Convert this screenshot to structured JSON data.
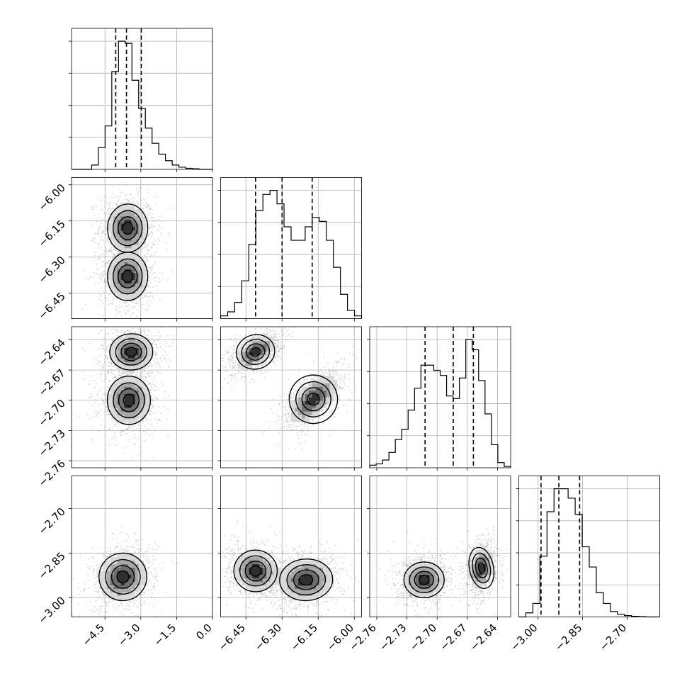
{
  "chart_data": {
    "type": "corner",
    "variables": [
      {
        "ticks": [
          -4.5,
          -3.0,
          -1.5,
          0.0
        ],
        "tick_labels": [
          "−4.5",
          "−3.0",
          "−1.5",
          "0.0"
        ],
        "range": [
          -5.9,
          0.0
        ]
      },
      {
        "ticks": [
          -6.45,
          -6.3,
          -6.15,
          -6.0
        ],
        "tick_labels": [
          "−6.45",
          "−6.30",
          "−6.15",
          "−6.00"
        ],
        "range": [
          -6.555,
          -5.97
        ]
      },
      {
        "ticks": [
          -2.76,
          -2.73,
          -2.7,
          -2.67,
          -2.64
        ],
        "tick_labels": [
          "−2.76",
          "−2.73",
          "−2.70",
          "−2.67",
          "−2.64"
        ],
        "range": [
          -2.767,
          -2.627
        ]
      },
      {
        "ticks": [
          -3.0,
          -2.85,
          -2.7
        ],
        "tick_labels": [
          "−3.00",
          "−2.85",
          "−2.70"
        ],
        "range": [
          -3.065,
          -2.59
        ]
      }
    ],
    "quantiles": [
      [
        -4.05,
        -3.6,
        -2.98
      ],
      [
        -6.41,
        -6.3,
        -6.175
      ],
      [
        -2.712,
        -2.684,
        -2.664
      ],
      [
        -2.99,
        -2.93,
        -2.86
      ]
    ],
    "histograms": [
      {
        "edges": [
          -5.9,
          0.0
        ],
        "counts": [
          0,
          0,
          0,
          2,
          10,
          20,
          45,
          59,
          58,
          41,
          28,
          19,
          12,
          7,
          4,
          2,
          1,
          0.5,
          0.3,
          0,
          0
        ]
      },
      {
        "edges": [
          -6.555,
          -5.97
        ],
        "counts": [
          2,
          5,
          12,
          28,
          55,
          80,
          92,
          95,
          85,
          68,
          58,
          58,
          68,
          75,
          72,
          58,
          38,
          18,
          6,
          2
        ]
      },
      {
        "edges": [
          -2.767,
          -2.627
        ],
        "counts": [
          2,
          3,
          6,
          12,
          22,
          30,
          45,
          62,
          80,
          80,
          76,
          72,
          56,
          54,
          70,
          100,
          92,
          68,
          42,
          18,
          4,
          1
        ]
      },
      {
        "edges": [
          -3.065,
          -2.59
        ],
        "counts": [
          0,
          3,
          10,
          45,
          78,
          95,
          95,
          88,
          76,
          52,
          37,
          18,
          10,
          4,
          2,
          1,
          0.5,
          0.2,
          0,
          0
        ]
      }
    ],
    "pairs": [
      {
        "x": 0,
        "y": 1,
        "modes": [
          {
            "mx": -3.55,
            "my": -6.18,
            "sx": 0.42,
            "sy": 0.05,
            "r": -0.05,
            "w": 1
          },
          {
            "mx": -3.55,
            "my": -6.38,
            "sx": 0.42,
            "sy": 0.05,
            "r": -0.05,
            "w": 1
          }
        ]
      },
      {
        "x": 0,
        "y": 2,
        "modes": [
          {
            "mx": -3.4,
            "my": -2.652,
            "sx": 0.45,
            "sy": 0.009,
            "r": 0.05,
            "w": 1
          },
          {
            "mx": -3.5,
            "my": -2.7,
            "sx": 0.45,
            "sy": 0.012,
            "r": 0.0,
            "w": 1
          }
        ]
      },
      {
        "x": 0,
        "y": 3,
        "modes": [
          {
            "mx": -3.75,
            "my": -2.93,
            "sx": 0.5,
            "sy": 0.04,
            "r": 0.15,
            "w": 1
          }
        ]
      },
      {
        "x": 1,
        "y": 2,
        "modes": [
          {
            "mx": -6.41,
            "my": -2.652,
            "sx": 0.04,
            "sy": 0.0085,
            "r": 0.5,
            "w": 1
          },
          {
            "mx": -6.17,
            "my": -2.699,
            "sx": 0.05,
            "sy": 0.012,
            "r": 0.6,
            "w": 1
          }
        ]
      },
      {
        "x": 1,
        "y": 3,
        "modes": [
          {
            "mx": -6.41,
            "my": -2.91,
            "sx": 0.045,
            "sy": 0.035,
            "r": -0.1,
            "w": 1
          },
          {
            "mx": -6.2,
            "my": -2.94,
            "sx": 0.055,
            "sy": 0.035,
            "r": 0.1,
            "w": 1
          }
        ]
      },
      {
        "x": 2,
        "y": 3,
        "modes": [
          {
            "mx": -2.713,
            "my": -2.94,
            "sx": 0.01,
            "sy": 0.03,
            "r": 0.05,
            "w": 1
          },
          {
            "mx": -2.656,
            "my": -2.9,
            "sx": 0.006,
            "sy": 0.035,
            "r": 0.2,
            "w": 1
          }
        ]
      }
    ]
  }
}
